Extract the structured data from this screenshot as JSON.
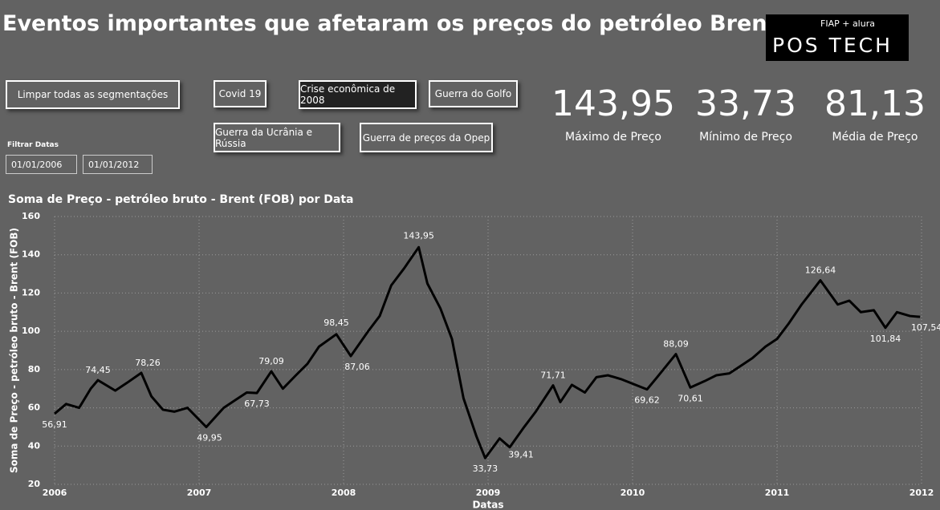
{
  "title": "Eventos importantes que afetaram os preços do petróleo Brent",
  "logo": {
    "brand": "FIAP + alura",
    "name": "POS TECH"
  },
  "buttons": [
    "Limpar todas as segmentações",
    "Covid 19",
    "Crise econômica de 2008",
    "Guerra do Golfo",
    "Guerra da Ucrânia e Rússia",
    "Guerra de preços da Opep"
  ],
  "date_filter": {
    "label": "Filtrar Datas",
    "start": "01/01/2006",
    "end": "01/01/2012"
  },
  "kpis": [
    {
      "value": "143,95",
      "label": "Máximo de Preço"
    },
    {
      "value": "33,73",
      "label": "Mínimo de Preço"
    },
    {
      "value": "81,13",
      "label": "Média de Preço"
    }
  ],
  "chart_data": {
    "type": "line",
    "title": "Soma de Preço - petróleo bruto - Brent (FOB) por Data",
    "x_label": "Datas",
    "y_label": "Soma de Preço - petróleo bruto - Brent (FOB)",
    "x": [
      2006.0,
      2006.08,
      2006.17,
      2006.25,
      2006.3,
      2006.42,
      2006.5,
      2006.6,
      2006.67,
      2006.75,
      2006.83,
      2006.92,
      2007.05,
      2007.17,
      2007.25,
      2007.33,
      2007.4,
      2007.5,
      2007.58,
      2007.67,
      2007.75,
      2007.83,
      2007.95,
      2008.05,
      2008.17,
      2008.25,
      2008.33,
      2008.42,
      2008.52,
      2008.58,
      2008.67,
      2008.75,
      2008.83,
      2008.92,
      2008.98,
      2009.08,
      2009.15,
      2009.25,
      2009.33,
      2009.45,
      2009.5,
      2009.58,
      2009.67,
      2009.75,
      2009.83,
      2009.92,
      2010.1,
      2010.17,
      2010.3,
      2010.4,
      2010.5,
      2010.58,
      2010.67,
      2010.75,
      2010.83,
      2010.92,
      2011.0,
      2011.08,
      2011.17,
      2011.3,
      2011.42,
      2011.5,
      2011.58,
      2011.67,
      2011.75,
      2011.83,
      2011.92,
      2011.99
    ],
    "series": [
      {
        "name": "Preço",
        "color": "#000000",
        "values": [
          56.91,
          62,
          60,
          70,
          74.45,
          69,
          73,
          78.26,
          66,
          59,
          58,
          60,
          49.95,
          60,
          64,
          68,
          67.73,
          79.09,
          70,
          77,
          83,
          92,
          98.45,
          87.06,
          100,
          108,
          124,
          133,
          143.95,
          125,
          112,
          96,
          65,
          45,
          33.73,
          44,
          39.41,
          50,
          58,
          71.71,
          63,
          72,
          68,
          76,
          77,
          75,
          69.62,
          76,
          88.09,
          70.61,
          74,
          77,
          78,
          82,
          86,
          92,
          96,
          104,
          114,
          126.64,
          114,
          116,
          110,
          111,
          101.84,
          110,
          108,
          107.54
        ]
      }
    ],
    "annotations": [
      {
        "x": 2006.0,
        "y": 56.91,
        "label": "56,91"
      },
      {
        "x": 2006.3,
        "y": 74.45,
        "label": "74,45"
      },
      {
        "x": 2006.6,
        "y": 78.26,
        "label": "78,26"
      },
      {
        "x": 2007.05,
        "y": 49.95,
        "label": "49,95"
      },
      {
        "x": 2007.5,
        "y": 79.09,
        "label": "79,09"
      },
      {
        "x": 2007.4,
        "y": 67.73,
        "label": "67,73"
      },
      {
        "x": 2007.95,
        "y": 98.45,
        "label": "98,45"
      },
      {
        "x": 2008.05,
        "y": 87.06,
        "label": "87,06"
      },
      {
        "x": 2008.52,
        "y": 143.95,
        "label": "143,95"
      },
      {
        "x": 2008.98,
        "y": 33.73,
        "label": "33,73"
      },
      {
        "x": 2009.15,
        "y": 39.41,
        "label": "39,41"
      },
      {
        "x": 2009.45,
        "y": 71.71,
        "label": "71,71"
      },
      {
        "x": 2010.1,
        "y": 69.62,
        "label": "69,62"
      },
      {
        "x": 2010.3,
        "y": 88.09,
        "label": "88,09"
      },
      {
        "x": 2010.4,
        "y": 70.61,
        "label": "70,61"
      },
      {
        "x": 2011.3,
        "y": 126.64,
        "label": "126,64"
      },
      {
        "x": 2011.75,
        "y": 101.84,
        "label": "101,84"
      },
      {
        "x": 2011.99,
        "y": 107.54,
        "label": "107,54"
      }
    ],
    "xlim": [
      2006,
      2012
    ],
    "xticks": [
      2006,
      2007,
      2008,
      2009,
      2010,
      2011,
      2012
    ],
    "ylim": [
      20,
      160
    ],
    "yticks": [
      20,
      40,
      60,
      80,
      100,
      120,
      140,
      160
    ],
    "grid": true
  }
}
